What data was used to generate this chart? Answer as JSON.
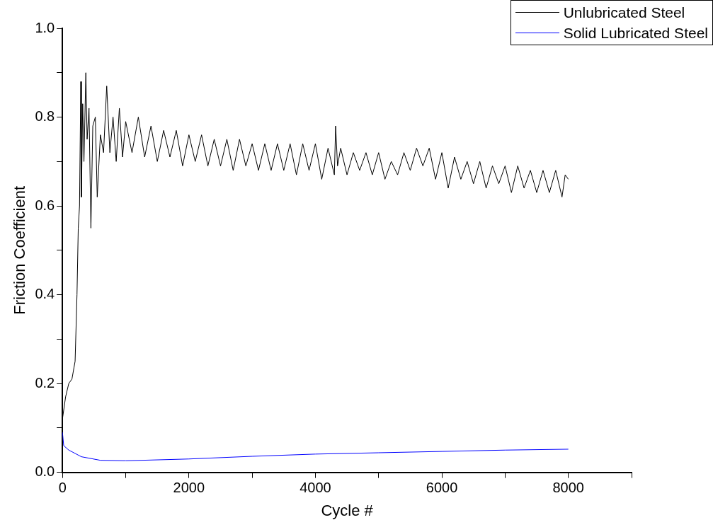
{
  "chart_data": {
    "type": "line",
    "xlabel": "Cycle #",
    "ylabel": "Friction Coefficient",
    "xlim": [
      0,
      9000
    ],
    "ylim": [
      0,
      1.0
    ],
    "xticks": [
      0,
      {
        "value": 1000,
        "label": null
      },
      2000,
      {
        "value": 3000,
        "label": null
      },
      4000,
      {
        "value": 5000,
        "label": null
      },
      6000,
      {
        "value": 7000,
        "label": null
      },
      8000,
      {
        "value": 9000,
        "label": null
      }
    ],
    "yticks": [
      {
        "value": 0,
        "label": "0.0"
      },
      {
        "value": 0.1,
        "label": null
      },
      0.2,
      {
        "value": 0.3,
        "label": null
      },
      0.4,
      {
        "value": 0.5,
        "label": null
      },
      0.6,
      {
        "value": 0.7,
        "label": null
      },
      0.8,
      {
        "value": 0.9,
        "label": null
      },
      {
        "value": 1.0,
        "label": "1.0"
      }
    ],
    "grid": false,
    "legend": "top right",
    "marker": "none",
    "line_style": "solid",
    "series": [
      {
        "name": "Unlubricated Steel",
        "color": "#000000",
        "x": [
          0,
          50,
          100,
          150,
          200,
          230,
          250,
          270,
          290,
          300,
          320,
          340,
          370,
          390,
          420,
          450,
          480,
          520,
          550,
          600,
          650,
          700,
          750,
          800,
          850,
          900,
          950,
          1000,
          1100,
          1200,
          1300,
          1400,
          1500,
          1600,
          1700,
          1800,
          1900,
          2000,
          2100,
          2200,
          2300,
          2400,
          2500,
          2600,
          2700,
          2800,
          2900,
          3000,
          3100,
          3200,
          3300,
          3400,
          3500,
          3600,
          3700,
          3800,
          3900,
          4000,
          4100,
          4200,
          4300,
          4320,
          4350,
          4400,
          4500,
          4600,
          4700,
          4800,
          4900,
          5000,
          5100,
          5200,
          5300,
          5400,
          5500,
          5600,
          5700,
          5800,
          5900,
          6000,
          6100,
          6200,
          6300,
          6400,
          6500,
          6600,
          6700,
          6800,
          6900,
          7000,
          7100,
          7200,
          7300,
          7400,
          7500,
          7600,
          7700,
          7800,
          7900,
          7950,
          8000
        ],
        "values": [
          0.12,
          0.17,
          0.2,
          0.21,
          0.25,
          0.4,
          0.55,
          0.6,
          0.88,
          0.62,
          0.83,
          0.7,
          0.9,
          0.75,
          0.82,
          0.55,
          0.78,
          0.8,
          0.62,
          0.76,
          0.72,
          0.87,
          0.72,
          0.8,
          0.7,
          0.82,
          0.71,
          0.79,
          0.72,
          0.8,
          0.71,
          0.78,
          0.7,
          0.77,
          0.71,
          0.77,
          0.69,
          0.76,
          0.7,
          0.76,
          0.69,
          0.75,
          0.69,
          0.75,
          0.68,
          0.75,
          0.69,
          0.74,
          0.68,
          0.74,
          0.68,
          0.74,
          0.68,
          0.74,
          0.67,
          0.74,
          0.68,
          0.74,
          0.66,
          0.73,
          0.67,
          0.78,
          0.69,
          0.73,
          0.67,
          0.72,
          0.68,
          0.72,
          0.67,
          0.72,
          0.66,
          0.7,
          0.67,
          0.72,
          0.68,
          0.73,
          0.69,
          0.73,
          0.66,
          0.72,
          0.64,
          0.71,
          0.66,
          0.7,
          0.65,
          0.7,
          0.64,
          0.69,
          0.65,
          0.69,
          0.63,
          0.69,
          0.64,
          0.68,
          0.63,
          0.68,
          0.63,
          0.68,
          0.62,
          0.67,
          0.66
        ]
      },
      {
        "name": "Solid Lubricated Steel",
        "color": "#0000ff",
        "x": [
          0,
          20,
          100,
          300,
          600,
          1000,
          2000,
          3000,
          4000,
          5000,
          6000,
          7000,
          8000
        ],
        "values": [
          0.09,
          0.06,
          0.05,
          0.035,
          0.027,
          0.026,
          0.03,
          0.036,
          0.041,
          0.044,
          0.047,
          0.05,
          0.052
        ]
      }
    ]
  }
}
